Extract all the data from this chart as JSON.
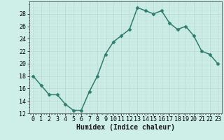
{
  "x": [
    0,
    1,
    2,
    3,
    4,
    5,
    6,
    7,
    8,
    9,
    10,
    11,
    12,
    13,
    14,
    15,
    16,
    17,
    18,
    19,
    20,
    21,
    22,
    23
  ],
  "y": [
    18,
    16.5,
    15,
    15,
    13.5,
    12.5,
    12.5,
    15.5,
    18,
    21.5,
    23.5,
    24.5,
    25.5,
    29,
    28.5,
    28,
    28.5,
    26.5,
    25.5,
    26,
    24.5,
    22,
    21.5,
    20
  ],
  "line_color": "#2e7d6e",
  "marker": "D",
  "marker_size": 2.5,
  "bg_color": "#ceeee8",
  "grid_color_major": "#b8d8d2",
  "xlabel": "Humidex (Indice chaleur)",
  "ylabel": "",
  "xlim": [
    -0.5,
    23.5
  ],
  "ylim": [
    12,
    30
  ],
  "yticks": [
    12,
    14,
    16,
    18,
    20,
    22,
    24,
    26,
    28
  ],
  "xticks": [
    0,
    1,
    2,
    3,
    4,
    5,
    6,
    7,
    8,
    9,
    10,
    11,
    12,
    13,
    14,
    15,
    16,
    17,
    18,
    19,
    20,
    21,
    22,
    23
  ],
  "xlabel_fontsize": 7.0,
  "tick_fontsize": 6.0,
  "line_width": 1.1
}
